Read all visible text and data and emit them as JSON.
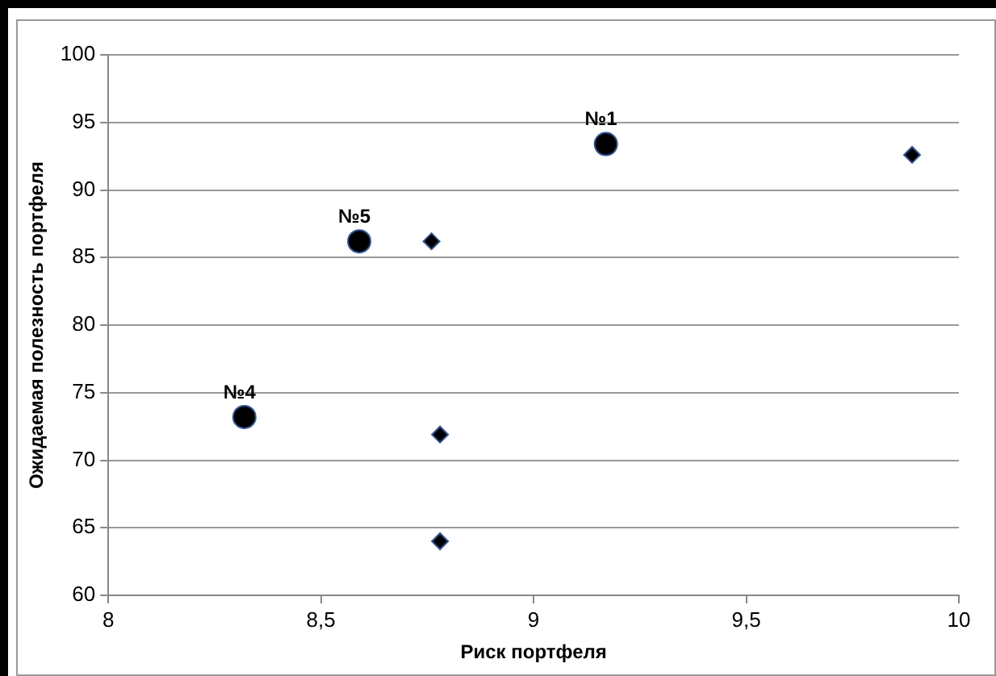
{
  "chart_data": {
    "type": "scatter",
    "xlabel": "Риск портфеля",
    "ylabel": "Ожидаемая полезность портфеля",
    "xlim": [
      8,
      10
    ],
    "xticks": [
      8,
      {
        "value": 8.5,
        "label": "8,5"
      },
      9,
      {
        "value": 9.5,
        "label": "9,5"
      },
      10
    ],
    "ylim": [
      60,
      100
    ],
    "yticks": [
      60,
      65,
      70,
      75,
      80,
      85,
      90,
      95,
      100
    ],
    "grid": "y",
    "legend": false,
    "series": [
      {
        "color": "#000000",
        "marker": "circle",
        "x": [
          9.17,
          8.59,
          8.32
        ],
        "values": [
          93.4,
          86.2,
          73.2
        ]
      },
      {
        "color": "#000000",
        "marker": "diamond",
        "x": [
          9.89,
          8.76,
          8.78,
          8.78
        ],
        "values": [
          92.6,
          86.2,
          71.9,
          64.0
        ]
      }
    ],
    "annotations": [
      {
        "text": "№1",
        "x": 9.17,
        "y": 93.4
      },
      {
        "text": "№5",
        "x": 8.59,
        "y": 86.2
      },
      {
        "text": "№4",
        "x": 8.32,
        "y": 73.2
      }
    ]
  }
}
